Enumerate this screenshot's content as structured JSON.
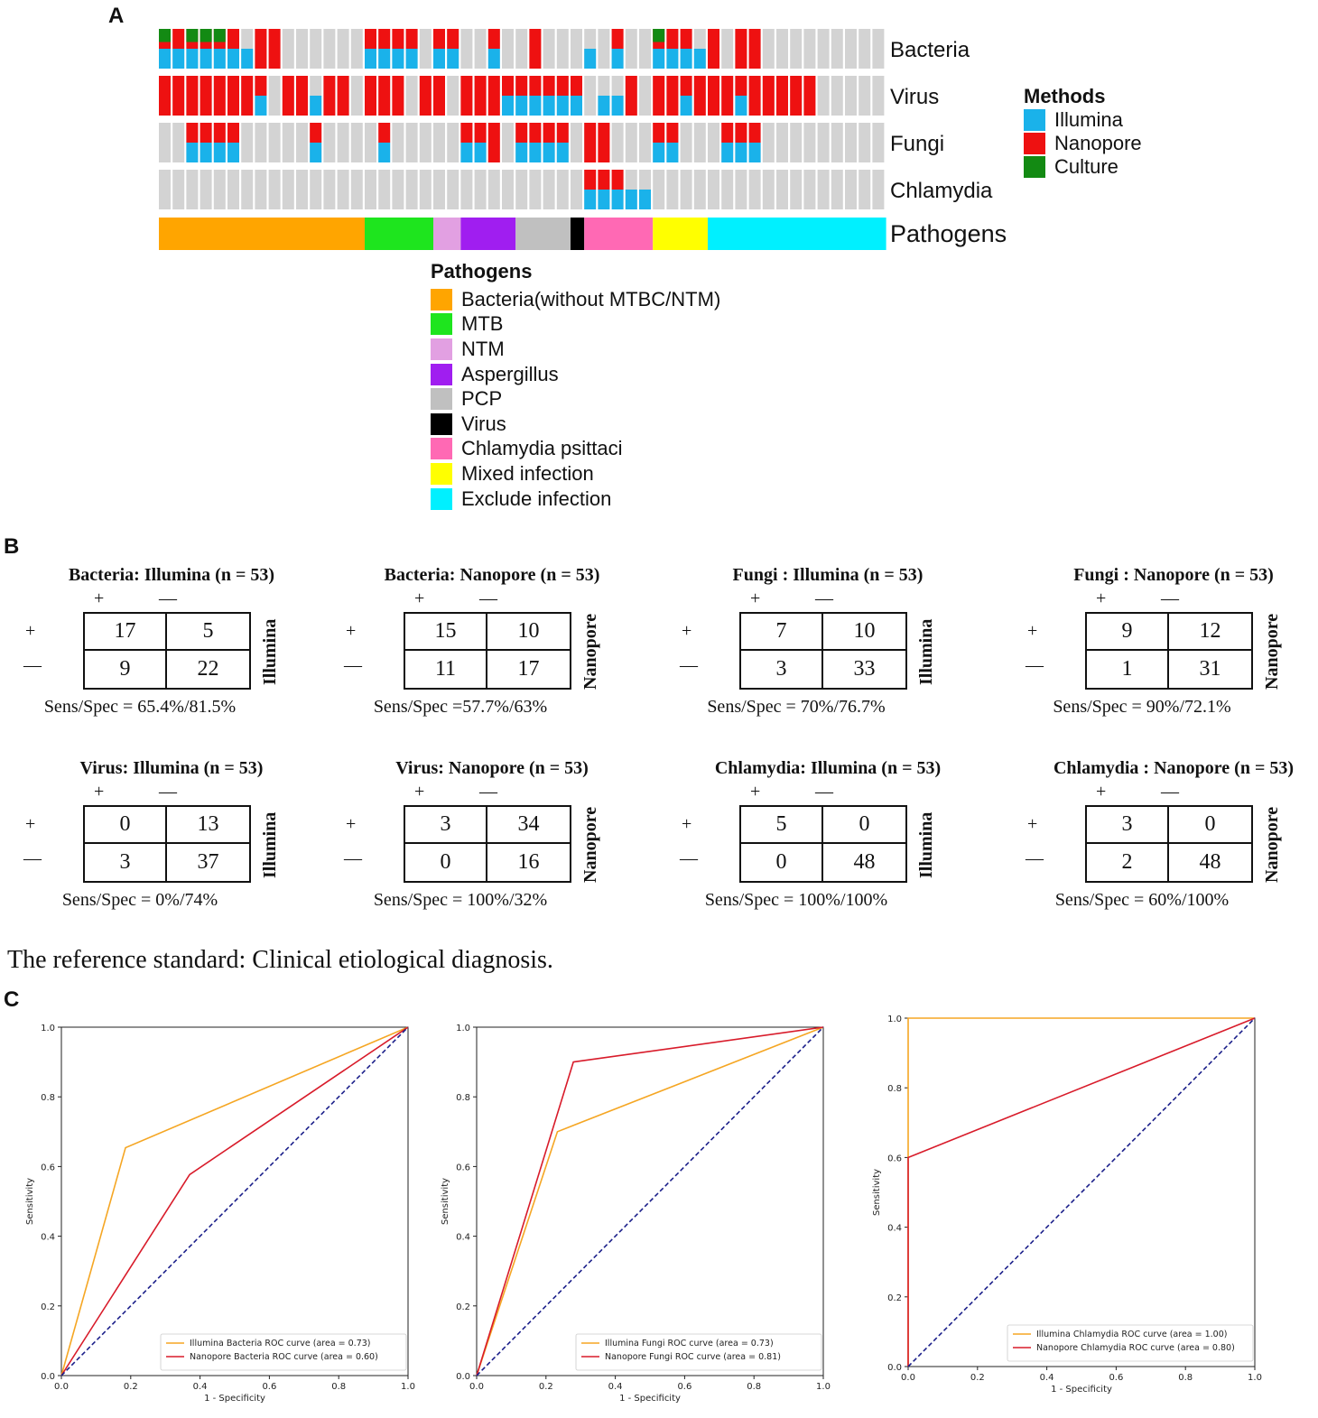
{
  "panel_labels": {
    "a": "A",
    "b": "B",
    "c": "C"
  },
  "heatmap": {
    "rows": [
      "Bacteria",
      "Virus",
      "Fungi",
      "Chlamydia"
    ],
    "pathogens_label": "Pathogens",
    "methods_legend": {
      "title": "Methods",
      "items": [
        {
          "label": "Illumina",
          "color": "#1ab2ea"
        },
        {
          "label": "Nanopore",
          "color": "#ee1111"
        },
        {
          "label": "Culture",
          "color": "#138a13"
        }
      ]
    },
    "pathogen_legend": {
      "title": "Pathogens",
      "items": [
        {
          "label": "Bacteria(without MTBC/NTM)",
          "color": "#ffa500",
          "count": 15
        },
        {
          "label": "MTB",
          "color": "#1ee51e",
          "count": 5
        },
        {
          "label": "NTM",
          "color": "#e2a0e2",
          "count": 2
        },
        {
          "label": "Aspergillus",
          "color": "#a01ef0",
          "count": 4
        },
        {
          "label": "PCP",
          "color": "#c0c0c0",
          "count": 4
        },
        {
          "label": "Virus",
          "color": "#000000",
          "count": 1
        },
        {
          "label": "Chlamydia psittaci",
          "color": "#ff69b4",
          "count": 5
        },
        {
          "label": "Mixed infection",
          "color": "#ffff00",
          "count": 4
        },
        {
          "label": "Exclude infection",
          "color": "#00f0ff",
          "count": 13
        }
      ]
    },
    "n_samples": 53,
    "cells": {
      "Bacteria": {
        "ill": [
          0,
          1,
          2,
          3,
          4,
          5,
          6,
          15,
          16,
          17,
          18,
          20,
          21,
          24,
          31,
          33,
          36,
          37,
          38,
          39
        ],
        "nan": [
          0,
          1,
          2,
          3,
          4,
          5,
          7,
          8,
          15,
          16,
          17,
          18,
          20,
          21,
          24,
          27,
          33,
          36,
          37,
          38,
          40,
          42,
          43
        ],
        "cul": [
          0,
          2,
          3,
          4,
          36
        ]
      },
      "Virus": {
        "ill": [
          7,
          11,
          25,
          26,
          27,
          28,
          29,
          30,
          32,
          33,
          38,
          42
        ],
        "nan": [
          0,
          1,
          2,
          3,
          4,
          5,
          6,
          7,
          9,
          10,
          12,
          13,
          15,
          16,
          17,
          19,
          20,
          22,
          23,
          24,
          25,
          26,
          27,
          28,
          29,
          30,
          34,
          36,
          37,
          38,
          39,
          40,
          41,
          42,
          43,
          44,
          45,
          46,
          47
        ]
      },
      "Fungi": {
        "ill": [
          2,
          3,
          4,
          5,
          11,
          16,
          22,
          23,
          26,
          27,
          28,
          29,
          36,
          37,
          41,
          42,
          43
        ],
        "nan": [
          2,
          3,
          4,
          5,
          11,
          16,
          22,
          23,
          24,
          26,
          27,
          28,
          29,
          31,
          32,
          36,
          37,
          41,
          42,
          43
        ]
      },
      "Chlamydia": {
        "ill": [
          31,
          32,
          33,
          34,
          35
        ],
        "nan": [
          31,
          32,
          33
        ]
      }
    }
  },
  "contingency_tables": [
    {
      "title": "Bacteria: Illumina (n = 53)",
      "side": "Illumina",
      "tl": "17",
      "tr": "5",
      "bl": "9",
      "br": "22",
      "foot": "Sens/Spec = 65.4%/81.5%"
    },
    {
      "title": "Bacteria: Nanopore (n = 53)",
      "side": "Nanopore",
      "tl": "15",
      "tr": "10",
      "bl": "11",
      "br": "17",
      "foot": "Sens/Spec =57.7%/63%"
    },
    {
      "title": "Fungi : Illumina (n = 53)",
      "side": "Illumina",
      "tl": "7",
      "tr": "10",
      "bl": "3",
      "br": "33",
      "foot": "Sens/Spec = 70%/76.7%"
    },
    {
      "title": "Fungi : Nanopore (n = 53)",
      "side": "Nanopore",
      "tl": "9",
      "tr": "12",
      "bl": "1",
      "br": "31",
      "foot": "Sens/Spec = 90%/72.1%"
    },
    {
      "title": "Virus: Illumina (n = 53)",
      "side": "Illumina",
      "tl": "0",
      "tr": "13",
      "bl": "3",
      "br": "37",
      "foot": "Sens/Spec = 0%/74%"
    },
    {
      "title": "Virus: Nanopore (n = 53)",
      "side": "Nanopore",
      "tl": "3",
      "tr": "34",
      "bl": "0",
      "br": "16",
      "foot": "Sens/Spec = 100%/32%"
    },
    {
      "title": "Chlamydia: Illumina (n = 53)",
      "side": "Illumina",
      "tl": "5",
      "tr": "0",
      "bl": "0",
      "br": "48",
      "foot": "Sens/Spec = 100%/100%"
    },
    {
      "title": "Chlamydia : Nanopore (n = 53)",
      "side": "Nanopore",
      "tl": "3",
      "tr": "0",
      "bl": "2",
      "br": "48",
      "foot": "Sens/Spec = 60%/100%"
    }
  ],
  "table_signs": {
    "plus": "+",
    "minus": "—"
  },
  "reference_text": "The reference standard: Clinical etiological diagnosis.",
  "chart_data": [
    {
      "type": "line",
      "title": "",
      "xlabel": "1 - Specificity",
      "ylabel": "Sensitivity",
      "xlim": [
        0,
        1
      ],
      "ylim": [
        0,
        1
      ],
      "ticks": [
        "0.0",
        "0.2",
        "0.4",
        "0.6",
        "0.8",
        "1.0"
      ],
      "series": [
        {
          "name": "Illumina Bacteria ROC curve (area = 0.73)",
          "color": "#f5a623",
          "x": [
            0,
            0.185,
            1
          ],
          "y": [
            0,
            0.654,
            1
          ]
        },
        {
          "name": "Nanopore Bacteria ROC curve (area = 0.60)",
          "color": "#d81b2a",
          "x": [
            0,
            0.37,
            1
          ],
          "y": [
            0,
            0.577,
            1
          ]
        },
        {
          "name": "chance",
          "color": "#1b1f8a",
          "x": [
            0,
            1
          ],
          "y": [
            0,
            1
          ],
          "dashed": true,
          "legend": false
        }
      ]
    },
    {
      "type": "line",
      "title": "",
      "xlabel": "1 - Specificity",
      "ylabel": "Sensitivity",
      "xlim": [
        0,
        1
      ],
      "ylim": [
        0,
        1
      ],
      "ticks": [
        "0.0",
        "0.2",
        "0.4",
        "0.6",
        "0.8",
        "1.0"
      ],
      "series": [
        {
          "name": "Illumina Fungi ROC curve (area = 0.73)",
          "color": "#f5a623",
          "x": [
            0,
            0.233,
            1
          ],
          "y": [
            0,
            0.7,
            1
          ]
        },
        {
          "name": "Nanopore Fungi ROC curve (area = 0.81)",
          "color": "#d81b2a",
          "x": [
            0,
            0.279,
            1
          ],
          "y": [
            0,
            0.9,
            1
          ]
        },
        {
          "name": "chance",
          "color": "#1b1f8a",
          "x": [
            0,
            1
          ],
          "y": [
            0,
            1
          ],
          "dashed": true,
          "legend": false
        }
      ]
    },
    {
      "type": "line",
      "title": "",
      "xlabel": "1 - Specificity",
      "ylabel": "Sensitivity",
      "xlim": [
        0,
        1
      ],
      "ylim": [
        0,
        1
      ],
      "ticks": [
        "0.0",
        "0.2",
        "0.4",
        "0.6",
        "0.8",
        "1.0"
      ],
      "series": [
        {
          "name": "Illumina Chlamydia ROC curve (area = 1.00)",
          "color": "#f5a623",
          "x": [
            0,
            0,
            1
          ],
          "y": [
            0,
            1,
            1
          ]
        },
        {
          "name": "Nanopore Chlamydia ROC curve (area = 0.80)",
          "color": "#d81b2a",
          "x": [
            0,
            0,
            1
          ],
          "y": [
            0,
            0.6,
            1
          ]
        },
        {
          "name": "chance",
          "color": "#1b1f8a",
          "x": [
            0,
            1
          ],
          "y": [
            0,
            1
          ],
          "dashed": true,
          "legend": false
        }
      ]
    }
  ]
}
